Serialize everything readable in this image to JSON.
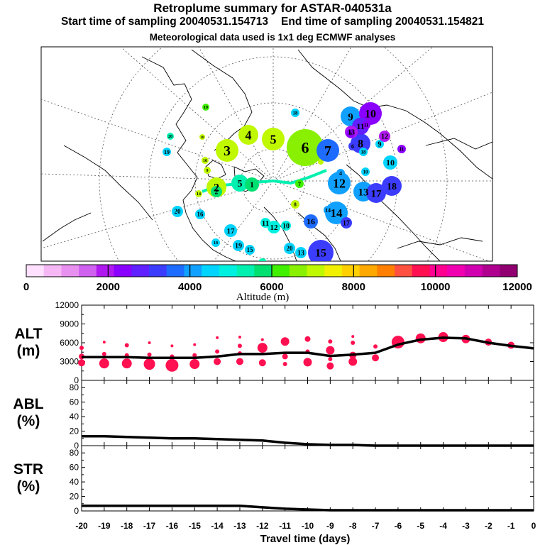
{
  "title": "Retroplume summary for ASTAR-040531a",
  "start_label": "Start time of sampling 20040531.154713",
  "end_label": "End time of sampling 20040531.154821",
  "met_label": "Meteorological data used is 1x1 deg ECMWF analyses",
  "colorbar": {
    "ticks": [
      "0",
      "2000",
      "4000",
      "6000",
      "8000",
      "10000",
      "12000"
    ],
    "title": "Altitude (m)",
    "colors": [
      "#ffe0ff",
      "#f5b8f5",
      "#e890f0",
      "#d060f0",
      "#b018f0",
      "#8a00ff",
      "#6020ff",
      "#3c3cff",
      "#1e6cff",
      "#10a0ff",
      "#00d4ff",
      "#00f0e0",
      "#00f0b0",
      "#00e070",
      "#40f000",
      "#88f000",
      "#c0f800",
      "#f0f000",
      "#ffd000",
      "#ffa800",
      "#ff8000",
      "#ff5040",
      "#ff1050",
      "#ff0090",
      "#f000b0",
      "#d000b0",
      "#b00090",
      "#900070"
    ]
  },
  "map_labels": [
    {
      "t": "1",
      "c": "#c0f800"
    },
    {
      "t": "2",
      "c": "#c0f800"
    },
    {
      "t": "3",
      "c": "#c0f800"
    },
    {
      "t": "4",
      "c": "#c0f800"
    },
    {
      "t": "5",
      "c": "#c0f800"
    },
    {
      "t": "6",
      "c": "#88f000"
    },
    {
      "t": "7",
      "c": "#1e6cff"
    },
    {
      "t": "8",
      "c": "#3c3cff"
    },
    {
      "t": "9",
      "c": "#10a0ff"
    },
    {
      "t": "10",
      "c": "#8a00ff"
    },
    {
      "t": "11",
      "c": "#6020ff"
    },
    {
      "t": "12",
      "c": "#10a0ff"
    },
    {
      "t": "13",
      "c": "#10a0ff"
    },
    {
      "t": "14",
      "c": "#10a0ff"
    },
    {
      "t": "15",
      "c": "#3c3cff"
    },
    {
      "t": "16",
      "c": "#1e6cff"
    },
    {
      "t": "17",
      "c": "#3c3cff"
    },
    {
      "t": "18",
      "c": "#3c3cff"
    },
    {
      "t": "5",
      "c": "#00f0b0"
    },
    {
      "t": "7",
      "c": "#40f000"
    },
    {
      "t": "1",
      "c": "#00e070"
    },
    {
      "t": "9",
      "c": "#00d4ff"
    },
    {
      "t": "10",
      "c": "#00d4ff"
    },
    {
      "t": "12",
      "c": "#b018f0"
    },
    {
      "t": "13",
      "c": "#b018f0"
    },
    {
      "t": "11",
      "c": "#8a00ff"
    },
    {
      "t": "20",
      "c": "#00f0b0"
    },
    {
      "t": "19",
      "c": "#00d4ff"
    },
    {
      "t": "16",
      "c": "#00d4ff"
    },
    {
      "t": "14",
      "c": "#10a0ff"
    },
    {
      "t": "17",
      "c": "#00d4ff"
    },
    {
      "t": "19",
      "c": "#00d4ff"
    },
    {
      "t": "15",
      "c": "#00d4ff"
    },
    {
      "t": "13",
      "c": "#00d4ff"
    },
    {
      "t": "20",
      "c": "#00d4ff"
    },
    {
      "t": "17",
      "c": "#3c3cff"
    },
    {
      "t": "19",
      "c": "#40f000"
    },
    {
      "t": "18",
      "c": "#c0f800"
    },
    {
      "t": "14",
      "c": "#c0f800"
    },
    {
      "t": "16",
      "c": "#c0f800"
    },
    {
      "t": "20",
      "c": "#00d4ff"
    },
    {
      "t": "18",
      "c": "#00d4ff"
    },
    {
      "t": "11",
      "c": "#00f0e0"
    },
    {
      "t": "12",
      "c": "#00f0e0"
    },
    {
      "t": "10",
      "c": "#00f0e0"
    },
    {
      "t": "8",
      "c": "#c0f800"
    },
    {
      "t": "18",
      "c": "#00d4ff"
    },
    {
      "t": "16",
      "c": "#00f0b0"
    },
    {
      "t": "9",
      "c": "#c0f800"
    },
    {
      "t": "2",
      "c": "#00e070"
    },
    {
      "t": "4",
      "c": "#10a0ff"
    },
    {
      "t": "6",
      "c": "#3c3cff"
    },
    {
      "t": "18",
      "c": "#00d4ff"
    },
    {
      "t": "3",
      "c": "#8a00ff"
    },
    {
      "t": "11",
      "c": "#8a00ff"
    },
    {
      "t": "10",
      "c": "#00d4ff"
    }
  ],
  "chart_data": {
    "type": "line",
    "xlabel": "Travel time (days)",
    "x": [
      -20,
      -19,
      -18,
      -17,
      -16,
      -15,
      -14,
      -13,
      -12,
      -11,
      -10,
      -9,
      -8,
      -7,
      -6,
      -5,
      -4,
      -3,
      -2,
      -1,
      0
    ],
    "x_tick_labels": [
      "-20",
      "-19",
      "-18",
      "-17",
      "-16",
      "-15",
      "-14",
      "-13",
      "-12",
      "-11",
      "-10",
      "-9",
      "-8",
      "-7",
      "-6",
      "-5",
      "-4",
      "-3",
      "-2",
      "-1",
      "0"
    ],
    "panels": [
      {
        "label_top": "ALT",
        "label_bottom": "(m)",
        "ylim": [
          0,
          12000
        ],
        "y_ticks": [
          "0",
          "3000",
          "6000",
          "9000",
          "12000"
        ],
        "series": [
          {
            "name": "mean altitude",
            "values": [
              3700,
              3700,
              3700,
              3600,
              3600,
              3600,
              3800,
              4200,
              4200,
              4400,
              4400,
              3900,
              4100,
              4400,
              5700,
              6500,
              6800,
              6700,
              6000,
              5500,
              5100
            ]
          }
        ],
        "cluster_points": {
          "color": "#ff1050",
          "points": [
            [
              -20,
              2800,
              5
            ],
            [
              -20,
              3800,
              4
            ],
            [
              -20,
              5200,
              3
            ],
            [
              -19,
              2700,
              7
            ],
            [
              -19,
              4200,
              3
            ],
            [
              -19,
              6100,
              2
            ],
            [
              -18,
              2700,
              7
            ],
            [
              -18,
              4000,
              3
            ],
            [
              -18,
              5600,
              3
            ],
            [
              -17,
              2600,
              8
            ],
            [
              -17,
              4100,
              3
            ],
            [
              -17,
              6000,
              2
            ],
            [
              -16,
              2400,
              9
            ],
            [
              -16,
              3800,
              3
            ],
            [
              -16,
              5500,
              2
            ],
            [
              -15,
              2600,
              7
            ],
            [
              -15,
              4000,
              3
            ],
            [
              -15,
              5700,
              2
            ],
            [
              -14,
              3000,
              5
            ],
            [
              -14,
              4600,
              3
            ],
            [
              -14,
              6800,
              2
            ],
            [
              -13,
              3000,
              5
            ],
            [
              -13,
              4300,
              3
            ],
            [
              -13,
              5500,
              3
            ],
            [
              -13,
              6900,
              2
            ],
            [
              -12,
              2800,
              5
            ],
            [
              -12,
              5200,
              7
            ],
            [
              -12,
              6500,
              2
            ],
            [
              -11,
              2600,
              3
            ],
            [
              -11,
              3800,
              4
            ],
            [
              -11,
              6200,
              6
            ],
            [
              -10,
              2900,
              6
            ],
            [
              -10,
              4600,
              3
            ],
            [
              -10,
              6600,
              4
            ],
            [
              -9,
              2300,
              5
            ],
            [
              -9,
              3400,
              3
            ],
            [
              -9,
              4800,
              6
            ],
            [
              -9,
              6200,
              3
            ],
            [
              -8,
              3000,
              6
            ],
            [
              -8,
              4000,
              5
            ],
            [
              -8,
              6000,
              3
            ],
            [
              -8,
              7000,
              2
            ],
            [
              -7,
              3600,
              5
            ],
            [
              -7,
              5400,
              3
            ],
            [
              -6,
              6100,
              9
            ],
            [
              -5,
              6700,
              7
            ],
            [
              -4,
              6900,
              7
            ],
            [
              -3,
              6600,
              6
            ],
            [
              -2,
              6100,
              5
            ],
            [
              -1,
              5600,
              5
            ]
          ]
        }
      },
      {
        "label_top": "ABL",
        "label_bottom": "(%)",
        "ylim": [
          0,
          90
        ],
        "y_ticks": [
          "0",
          "20",
          "40",
          "60",
          "80"
        ],
        "series": [
          {
            "name": "fraction in boundary layer",
            "values": [
              13,
              13,
              12,
              11,
              10,
              10,
              9,
              8,
              7,
              4,
              2,
              1,
              1,
              0,
              0,
              0,
              0,
              0,
              0,
              0,
              0
            ]
          }
        ]
      },
      {
        "label_top": "STR",
        "label_bottom": "(%)",
        "ylim": [
          0,
          90
        ],
        "y_ticks": [
          "0",
          "20",
          "40",
          "60",
          "80"
        ],
        "series": [
          {
            "name": "fraction in stratosphere",
            "values": [
              7,
              7,
              7,
              7,
              7,
              7,
              7,
              7,
              5,
              3,
              2,
              1,
              1,
              1,
              1,
              1,
              1,
              1,
              1,
              1,
              1
            ]
          }
        ]
      }
    ]
  }
}
